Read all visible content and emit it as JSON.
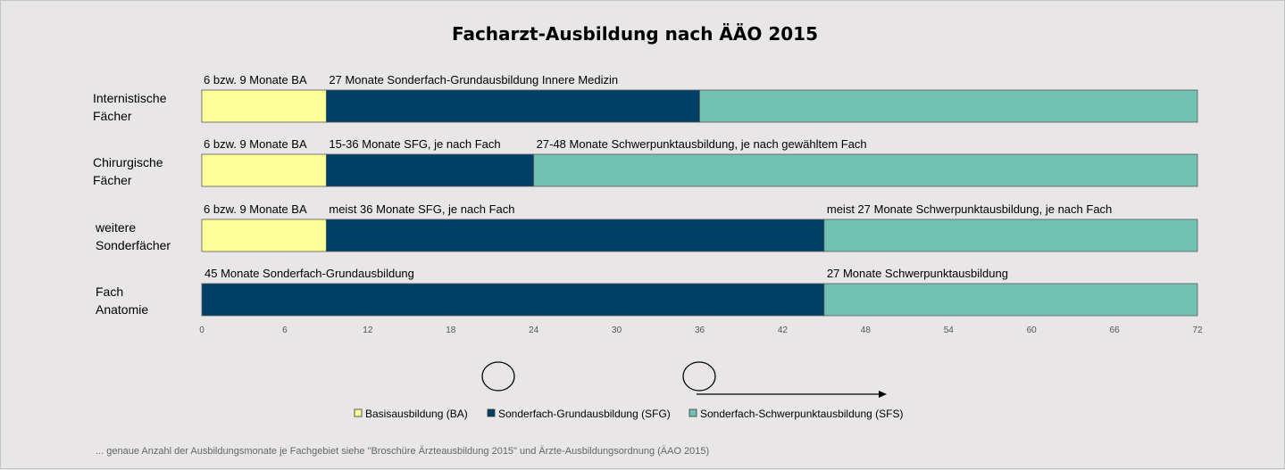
{
  "chart_data": {
    "type": "bar",
    "orientation": "horizontal",
    "stacked": true,
    "title": "Facharzt-Ausbildung nach ÄÄO 2015",
    "categories": [
      [
        "Internistische",
        "Fächer"
      ],
      [
        "Chirurgische",
        "Fächer"
      ],
      [
        "weitere",
        "Sonderfächer"
      ],
      [
        "Fach",
        "Anatomie"
      ]
    ],
    "series": [
      {
        "name": "Basisausbildung (BA)",
        "color": "#ffff99",
        "values": [
          9,
          9,
          9,
          0
        ]
      },
      {
        "name": "Sonderfach-Grundausbildung (SFG)",
        "color": "#003f66",
        "values": [
          27,
          15,
          36,
          45
        ]
      },
      {
        "name": "Sonderfach-Schwerpunktausbildung (SFS)",
        "color": "#72c2b4",
        "values": [
          36,
          48,
          27,
          27
        ]
      }
    ],
    "segment_labels": [
      [
        "6 bzw. 9 Monate BA",
        "27 Monate Sonderfach-Grundausbildung Innere Medizin",
        ""
      ],
      [
        "6 bzw. 9 Monate BA",
        "15-36  Monate SFG, je nach Fach",
        "27-48  Monate Schwerpunktausbildung, je nach gewähltem Fach"
      ],
      [
        "6 bzw. 9 Monate BA",
        "meist 36 Monate SFG, je nach Fach",
        "meist 27 Monate Schwerpunktausbildung, je nach Fach"
      ],
      [
        "",
        "45 Monate Sonderfach-Grundausbildung",
        "27 Monate Schwerpunktausbildung"
      ]
    ],
    "xlim": [
      0,
      72
    ],
    "xticks": [
      0,
      6,
      12,
      18,
      24,
      30,
      36,
      42,
      48,
      54,
      60,
      66,
      72
    ],
    "legend_position": "bottom",
    "grid": false
  },
  "footnote": "... genaue Anzahl der Ausbildungsmonate je Fachgebiet siehe \"Broschüre Ärzteausbildung 2015\" und Ärzte-Ausbildungsordnung (ÄAO  2015)"
}
